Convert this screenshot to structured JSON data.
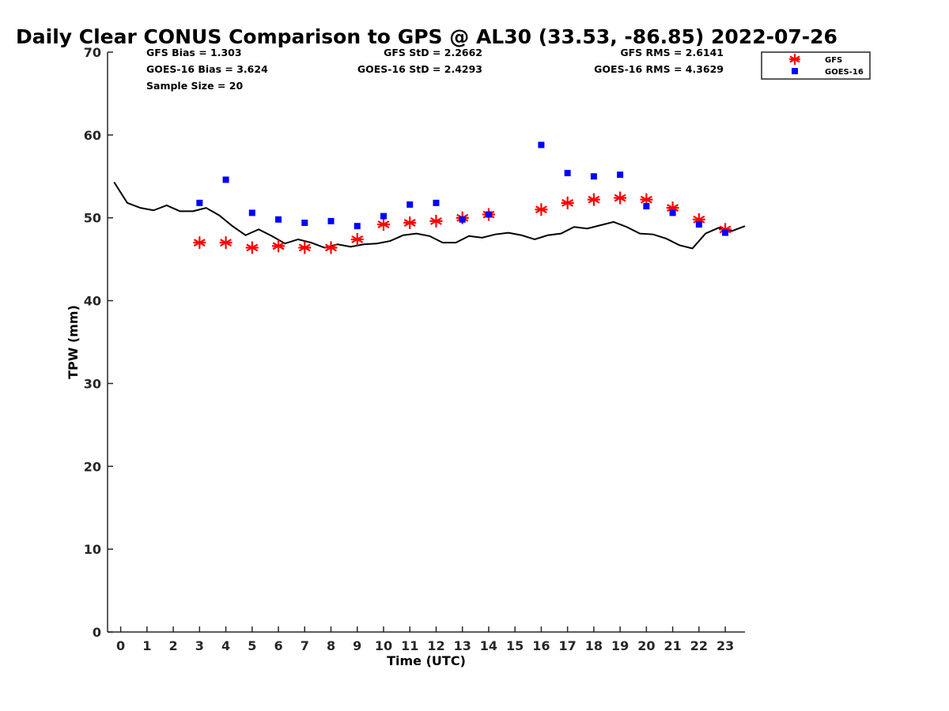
{
  "chart_data": {
    "type": "scatter",
    "title": "Daily Clear CONUS Comparison to GPS @ AL30 (33.53, -86.85) 2022-07-26",
    "xlabel": "Time (UTC)",
    "ylabel": "TPW (mm)",
    "xlim": [
      -0.5,
      23.75
    ],
    "ylim": [
      0,
      70
    ],
    "xticks": [
      "0",
      "1",
      "2",
      "3",
      "4",
      "5",
      "6",
      "7",
      "8",
      "9",
      "10",
      "11",
      "12",
      "13",
      "14",
      "15",
      "16",
      "17",
      "18",
      "19",
      "20",
      "21",
      "22",
      "23"
    ],
    "yticks": [
      "0",
      "10",
      "20",
      "30",
      "40",
      "50",
      "60",
      "70"
    ],
    "grid": false,
    "legend_position": "top-right outside",
    "stats": {
      "gfs_bias": "GFS Bias = 1.303",
      "goes_bias": "GOES-16 Bias = 3.624",
      "sample_size": "Sample Size = 20",
      "gfs_std": "GFS StD = 2.2662",
      "goes_std": "GOES-16 StD = 2.4293",
      "gfs_rms": "GFS RMS = 2.6141",
      "goes_rms": "GOES-16 RMS = 4.3629"
    },
    "series": [
      {
        "name": "GPS",
        "kind": "line",
        "color": "#000000",
        "x": [
          -0.25,
          0.25,
          0.75,
          1.25,
          1.75,
          2.25,
          2.75,
          3.25,
          3.75,
          4.25,
          4.75,
          5.25,
          5.75,
          6.25,
          6.75,
          7.25,
          7.75,
          8.25,
          8.75,
          9.25,
          9.75,
          10.25,
          10.75,
          11.25,
          11.75,
          12.25,
          12.75,
          13.25,
          13.75,
          14.25,
          14.75,
          15.25,
          15.75,
          16.25,
          16.75,
          17.25,
          17.75,
          18.25,
          18.75,
          19.25,
          19.75,
          20.25,
          20.75,
          21.25,
          21.75,
          22.25,
          22.75,
          23.25,
          23.75
        ],
        "y": [
          54.3,
          51.8,
          51.2,
          50.9,
          51.5,
          50.8,
          50.8,
          51.2,
          50.3,
          49.0,
          47.9,
          48.6,
          47.8,
          46.9,
          47.4,
          47.0,
          46.4,
          46.8,
          46.5,
          46.8,
          46.9,
          47.2,
          47.9,
          48.1,
          47.8,
          47.0,
          47.0,
          47.8,
          47.6,
          48.0,
          48.2,
          47.9,
          47.4,
          47.9,
          48.1,
          48.9,
          48.7,
          49.1,
          49.5,
          48.9,
          48.1,
          48.0,
          47.5,
          46.7,
          46.3,
          48.1,
          48.8,
          48.4,
          49.0
        ]
      },
      {
        "name": "GFS",
        "kind": "marker-star",
        "color": "#ff0000",
        "x": [
          3,
          4,
          5,
          6,
          7,
          8,
          9,
          10,
          11,
          12,
          13,
          14,
          16,
          17,
          18,
          19,
          20,
          21,
          22,
          23
        ],
        "y": [
          47.0,
          47.0,
          46.4,
          46.6,
          46.4,
          46.4,
          47.4,
          49.2,
          49.4,
          49.6,
          50.0,
          50.4,
          51.0,
          51.8,
          52.2,
          52.4,
          52.2,
          51.2,
          49.8,
          48.6
        ]
      },
      {
        "name": "GOES-16",
        "kind": "marker-square",
        "color": "#0000ff",
        "x": [
          3,
          4,
          5,
          6,
          7,
          8,
          9,
          10,
          11,
          12,
          13,
          14,
          16,
          17,
          18,
          19,
          20,
          21,
          22,
          23
        ],
        "y": [
          51.8,
          54.6,
          50.6,
          49.8,
          49.4,
          49.6,
          49.0,
          50.2,
          51.6,
          51.8,
          49.8,
          50.4,
          58.8,
          55.4,
          55.0,
          55.2,
          51.4,
          50.6,
          49.2,
          48.2
        ]
      }
    ]
  }
}
